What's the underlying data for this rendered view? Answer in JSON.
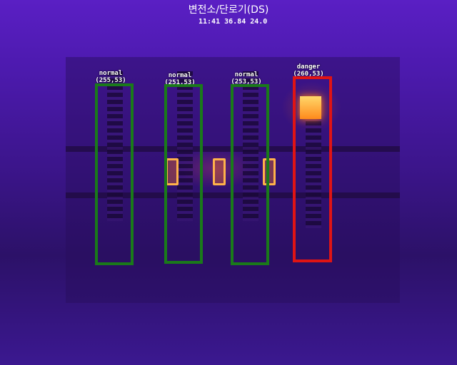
{
  "header": {
    "title": "변전소/단로기(DS)",
    "readout": "11:41 36.84 24.0"
  },
  "colors": {
    "normal": "#1a7a1a",
    "danger": "#e01414"
  },
  "detections": [
    {
      "status": "normal",
      "value": "(255,53)"
    },
    {
      "status": "normal",
      "value": "(251,53)"
    },
    {
      "status": "normal",
      "value": "(253,53)"
    },
    {
      "status": "danger",
      "value": "(260,53)"
    }
  ]
}
